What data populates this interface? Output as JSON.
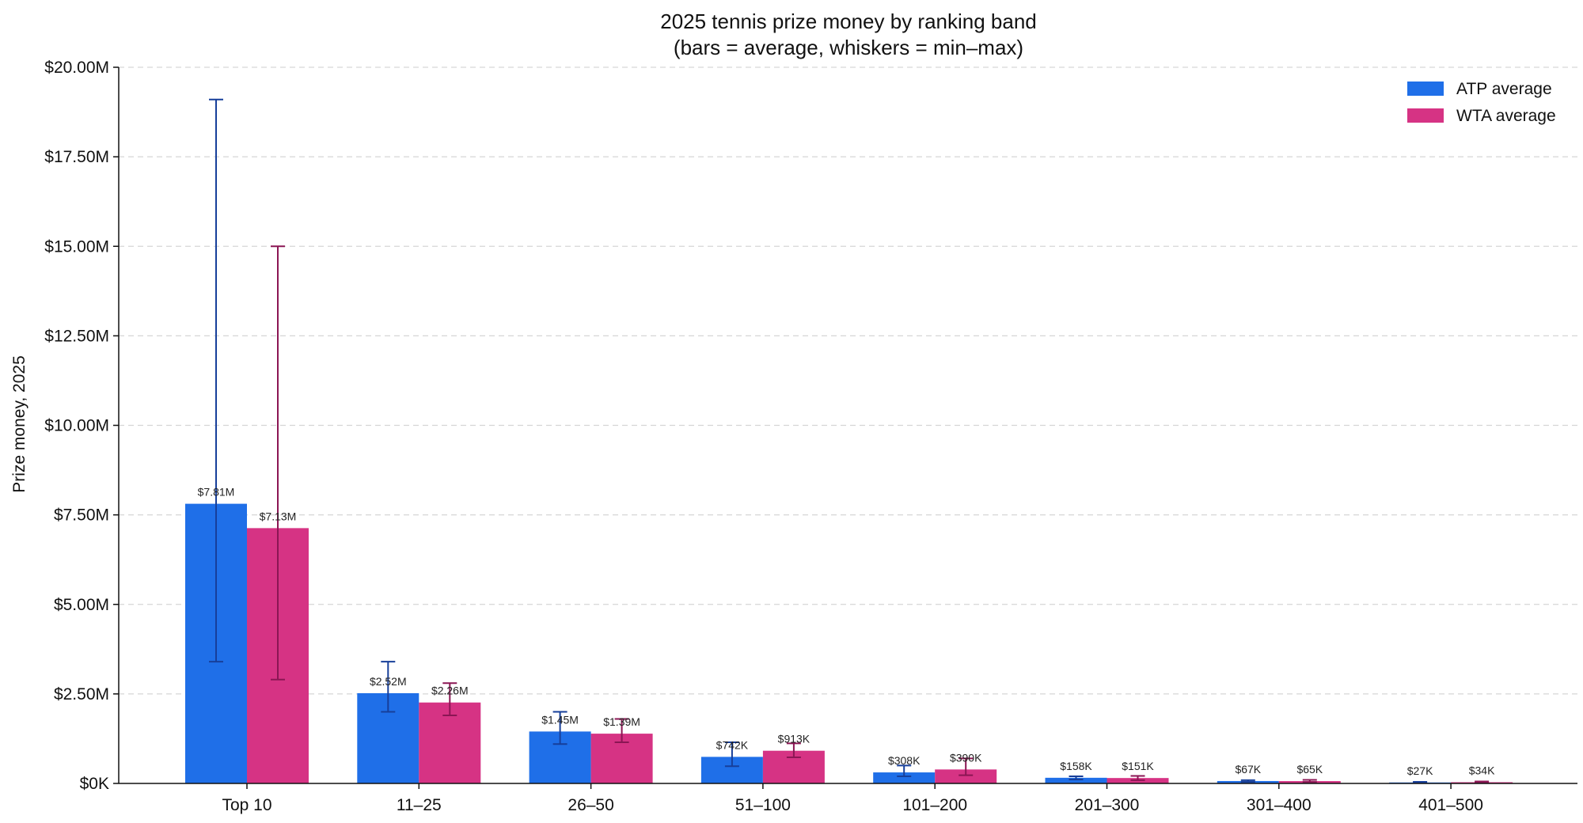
{
  "chart_data": {
    "type": "bar",
    "title": "2025 tennis prize money by ranking band",
    "subtitle": "(bars = average, whiskers = min–max)",
    "xlabel": "",
    "ylabel": "Prize money, 2025",
    "ylim": [
      0,
      20000000
    ],
    "y_ticks": [
      0,
      2500000,
      5000000,
      7500000,
      10000000,
      12500000,
      15000000,
      17500000,
      20000000
    ],
    "y_tick_labels": [
      "$0K",
      "$2.50M",
      "$5.00M",
      "$7.50M",
      "$10.00M",
      "$12.50M",
      "$15.00M",
      "$17.50M",
      "$20.00M"
    ],
    "grid": true,
    "legend_position": "top-right",
    "categories": [
      "Top 10",
      "11–25",
      "26–50",
      "51–100",
      "101–200",
      "201–300",
      "301–400",
      "401–500"
    ],
    "series": [
      {
        "name": "ATP average",
        "color": "#1f6fe8",
        "whisker_color": "#173f9a",
        "values": [
          7810000,
          2520000,
          1450000,
          742000,
          308000,
          158000,
          67000,
          27000
        ],
        "min": [
          3400000,
          2000000,
          1100000,
          480000,
          200000,
          110000,
          45000,
          15000
        ],
        "max": [
          19100000,
          3400000,
          2000000,
          1150000,
          500000,
          200000,
          90000,
          45000
        ],
        "labels": [
          "$7.81M",
          "$2.52M",
          "$1.45M",
          "$742K",
          "$308K",
          "$158K",
          "$67K",
          "$27K"
        ]
      },
      {
        "name": "WTA average",
        "color": "#d63384",
        "whisker_color": "#8b1654",
        "values": [
          7130000,
          2260000,
          1390000,
          913000,
          390000,
          151000,
          65000,
          34000
        ],
        "min": [
          2900000,
          1900000,
          1150000,
          730000,
          230000,
          90000,
          40000,
          20000
        ],
        "max": [
          15000000,
          2800000,
          1800000,
          1120000,
          700000,
          210000,
          100000,
          55000
        ],
        "labels": [
          "$7.13M",
          "$2.26M",
          "$1.39M",
          "$913K",
          "$390K",
          "$151K",
          "$65K",
          "$34K"
        ]
      }
    ]
  }
}
